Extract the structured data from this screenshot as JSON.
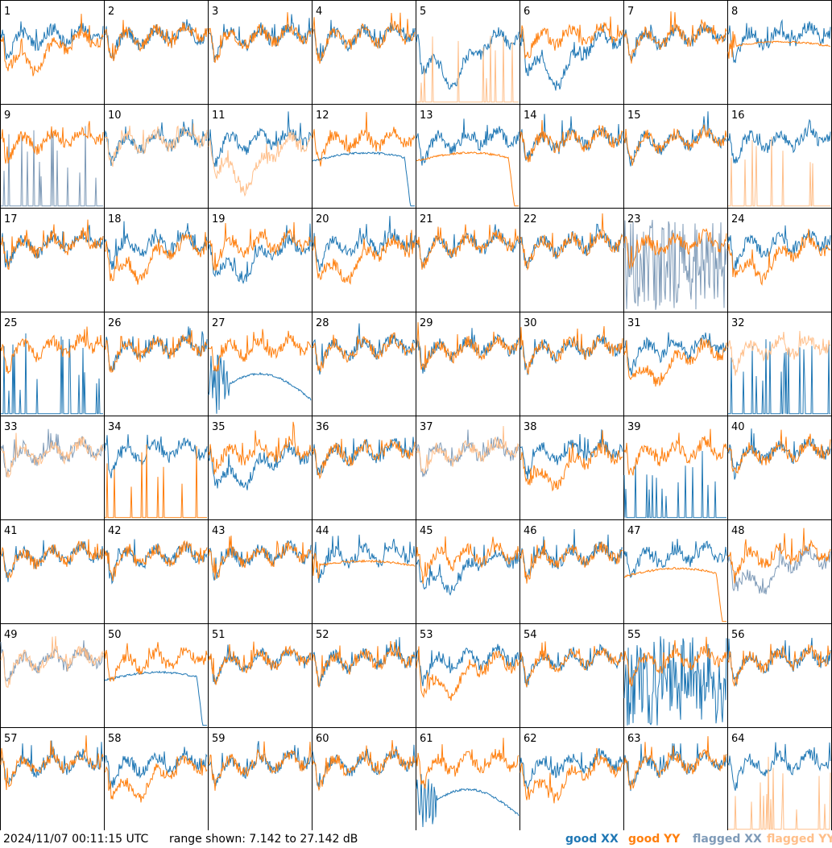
{
  "footer": {
    "timestamp": "2024/11/07 00:11:15 UTC",
    "range": "range shown: 7.142 to 27.142 dB"
  },
  "legend": [
    {
      "label": "good XX",
      "color": "#1f77b4"
    },
    {
      "label": "good YY",
      "color": "#ff7f0e"
    },
    {
      "label": "flagged XX",
      "color": "#7f9bb8"
    },
    {
      "label": "flagged YY",
      "color": "#ffbf8a"
    }
  ],
  "chart_data": {
    "type": "line",
    "panel_count": 64,
    "grid": {
      "rows": 8,
      "cols": 8
    },
    "ylim_db": [
      7.142,
      27.142
    ],
    "panels": [
      {
        "id": "1",
        "xx": "good",
        "yy": "good",
        "xx_kind": "normal",
        "yy_kind": "sag"
      },
      {
        "id": "2",
        "xx": "good",
        "yy": "good",
        "xx_kind": "normal",
        "yy_kind": "normal"
      },
      {
        "id": "3",
        "xx": "good",
        "yy": "good",
        "xx_kind": "normal",
        "yy_kind": "normal"
      },
      {
        "id": "4",
        "xx": "good",
        "yy": "good",
        "xx_kind": "normal",
        "yy_kind": "normal"
      },
      {
        "id": "5",
        "xx": "good",
        "yy": "flagged",
        "xx_kind": "deep",
        "yy_kind": "spikes"
      },
      {
        "id": "6",
        "xx": "good",
        "yy": "good",
        "xx_kind": "deep",
        "yy_kind": "normal"
      },
      {
        "id": "7",
        "xx": "good",
        "yy": "good",
        "xx_kind": "normal",
        "yy_kind": "normal"
      },
      {
        "id": "8",
        "xx": "good",
        "yy": "good",
        "xx_kind": "normal",
        "yy_kind": "smooth"
      },
      {
        "id": "9",
        "xx": "flagged",
        "yy": "good",
        "xx_kind": "spikes",
        "yy_kind": "normal"
      },
      {
        "id": "10",
        "xx": "good",
        "yy": "flagged",
        "xx_kind": "normal",
        "yy_kind": "normal"
      },
      {
        "id": "11",
        "xx": "good",
        "yy": "flagged",
        "xx_kind": "normal",
        "yy_kind": "deep"
      },
      {
        "id": "12",
        "xx": "good",
        "yy": "good",
        "xx_kind": "dropend",
        "yy_kind": "normal"
      },
      {
        "id": "13",
        "xx": "good",
        "yy": "good",
        "xx_kind": "normal",
        "yy_kind": "dropend"
      },
      {
        "id": "14",
        "xx": "good",
        "yy": "good",
        "xx_kind": "normal",
        "yy_kind": "normal"
      },
      {
        "id": "15",
        "xx": "good",
        "yy": "good",
        "xx_kind": "normal",
        "yy_kind": "normal"
      },
      {
        "id": "16",
        "xx": "good",
        "yy": "flagged",
        "xx_kind": "normal",
        "yy_kind": "spikes"
      },
      {
        "id": "17",
        "xx": "good",
        "yy": "good",
        "xx_kind": "normal",
        "yy_kind": "normal"
      },
      {
        "id": "18",
        "xx": "good",
        "yy": "good",
        "xx_kind": "normal",
        "yy_kind": "sag"
      },
      {
        "id": "19",
        "xx": "good",
        "yy": "good",
        "xx_kind": "sag",
        "yy_kind": "normal"
      },
      {
        "id": "20",
        "xx": "good",
        "yy": "good",
        "xx_kind": "normal",
        "yy_kind": "sag"
      },
      {
        "id": "21",
        "xx": "good",
        "yy": "good",
        "xx_kind": "normal",
        "yy_kind": "normal"
      },
      {
        "id": "22",
        "xx": "good",
        "yy": "good",
        "xx_kind": "normal",
        "yy_kind": "normal"
      },
      {
        "id": "23",
        "xx": "flagged",
        "yy": "good",
        "xx_kind": "chaos",
        "yy_kind": "normal"
      },
      {
        "id": "24",
        "xx": "good",
        "yy": "good",
        "xx_kind": "normal",
        "yy_kind": "sag"
      },
      {
        "id": "25",
        "xx": "good",
        "yy": "good",
        "xx_kind": "spikes",
        "yy_kind": "normal"
      },
      {
        "id": "26",
        "xx": "good",
        "yy": "good",
        "xx_kind": "normal",
        "yy_kind": "normal"
      },
      {
        "id": "27",
        "xx": "good",
        "yy": "good",
        "xx_kind": "arch",
        "yy_kind": "normal"
      },
      {
        "id": "28",
        "xx": "good",
        "yy": "good",
        "xx_kind": "normal",
        "yy_kind": "normal"
      },
      {
        "id": "29",
        "xx": "good",
        "yy": "good",
        "xx_kind": "normal",
        "yy_kind": "normal"
      },
      {
        "id": "30",
        "xx": "good",
        "yy": "good",
        "xx_kind": "normal",
        "yy_kind": "normal"
      },
      {
        "id": "31",
        "xx": "good",
        "yy": "good",
        "xx_kind": "normal",
        "yy_kind": "sag"
      },
      {
        "id": "32",
        "xx": "good",
        "yy": "flagged",
        "xx_kind": "spikes",
        "yy_kind": "normal"
      },
      {
        "id": "33",
        "xx": "flagged",
        "yy": "flagged",
        "xx_kind": "normal",
        "yy_kind": "normal"
      },
      {
        "id": "34",
        "xx": "good",
        "yy": "good",
        "xx_kind": "normal",
        "yy_kind": "spikes"
      },
      {
        "id": "35",
        "xx": "good",
        "yy": "good",
        "xx_kind": "sag",
        "yy_kind": "normal"
      },
      {
        "id": "36",
        "xx": "good",
        "yy": "good",
        "xx_kind": "normal",
        "yy_kind": "normal"
      },
      {
        "id": "37",
        "xx": "flagged",
        "yy": "flagged",
        "xx_kind": "normal",
        "yy_kind": "normal"
      },
      {
        "id": "38",
        "xx": "good",
        "yy": "good",
        "xx_kind": "normal",
        "yy_kind": "sag"
      },
      {
        "id": "39",
        "xx": "good",
        "yy": "good",
        "xx_kind": "spikes",
        "yy_kind": "normal"
      },
      {
        "id": "40",
        "xx": "good",
        "yy": "good",
        "xx_kind": "normal",
        "yy_kind": "normal"
      },
      {
        "id": "41",
        "xx": "good",
        "yy": "good",
        "xx_kind": "normal",
        "yy_kind": "normal"
      },
      {
        "id": "42",
        "xx": "good",
        "yy": "good",
        "xx_kind": "normal",
        "yy_kind": "normal"
      },
      {
        "id": "43",
        "xx": "good",
        "yy": "good",
        "xx_kind": "normal",
        "yy_kind": "normal"
      },
      {
        "id": "44",
        "xx": "good",
        "yy": "good",
        "xx_kind": "normal",
        "yy_kind": "smooth"
      },
      {
        "id": "45",
        "xx": "good",
        "yy": "good",
        "xx_kind": "sag",
        "yy_kind": "normal"
      },
      {
        "id": "46",
        "xx": "good",
        "yy": "good",
        "xx_kind": "normal",
        "yy_kind": "normal"
      },
      {
        "id": "47",
        "xx": "good",
        "yy": "good",
        "xx_kind": "normal",
        "yy_kind": "dropend"
      },
      {
        "id": "48",
        "xx": "flagged",
        "yy": "good",
        "xx_kind": "sag",
        "yy_kind": "normal"
      },
      {
        "id": "49",
        "xx": "flagged",
        "yy": "flagged",
        "xx_kind": "normal",
        "yy_kind": "normal"
      },
      {
        "id": "50",
        "xx": "good",
        "yy": "good",
        "xx_kind": "dropend",
        "yy_kind": "normal"
      },
      {
        "id": "51",
        "xx": "good",
        "yy": "good",
        "xx_kind": "normal",
        "yy_kind": "normal"
      },
      {
        "id": "52",
        "xx": "good",
        "yy": "good",
        "xx_kind": "normal",
        "yy_kind": "normal"
      },
      {
        "id": "53",
        "xx": "good",
        "yy": "good",
        "xx_kind": "normal",
        "yy_kind": "sag"
      },
      {
        "id": "54",
        "xx": "good",
        "yy": "good",
        "xx_kind": "normal",
        "yy_kind": "normal"
      },
      {
        "id": "55",
        "xx": "good",
        "yy": "good",
        "xx_kind": "chaos",
        "yy_kind": "normal"
      },
      {
        "id": "56",
        "xx": "good",
        "yy": "good",
        "xx_kind": "normal",
        "yy_kind": "normal"
      },
      {
        "id": "57",
        "xx": "good",
        "yy": "good",
        "xx_kind": "normal",
        "yy_kind": "normal"
      },
      {
        "id": "58",
        "xx": "good",
        "yy": "good",
        "xx_kind": "normal",
        "yy_kind": "sag"
      },
      {
        "id": "59",
        "xx": "good",
        "yy": "good",
        "xx_kind": "normal",
        "yy_kind": "normal"
      },
      {
        "id": "60",
        "xx": "good",
        "yy": "good",
        "xx_kind": "normal",
        "yy_kind": "normal"
      },
      {
        "id": "61",
        "xx": "good",
        "yy": "good",
        "xx_kind": "arch",
        "yy_kind": "normal"
      },
      {
        "id": "62",
        "xx": "good",
        "yy": "good",
        "xx_kind": "normal",
        "yy_kind": "sag"
      },
      {
        "id": "63",
        "xx": "good",
        "yy": "good",
        "xx_kind": "normal",
        "yy_kind": "normal"
      },
      {
        "id": "64",
        "xx": "good",
        "yy": "flagged",
        "xx_kind": "normal",
        "yy_kind": "spikes"
      }
    ]
  }
}
